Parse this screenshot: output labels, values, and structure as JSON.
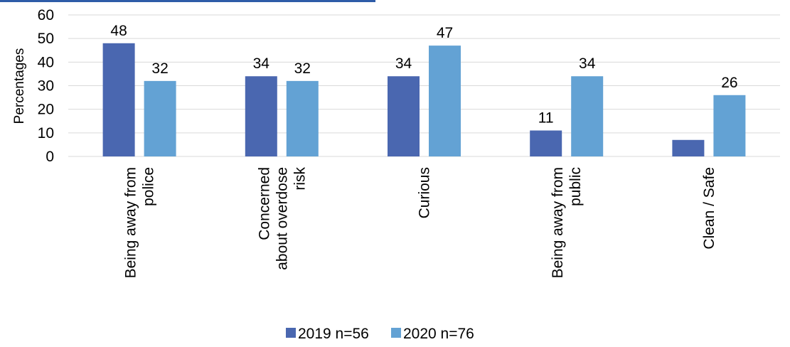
{
  "chart_data": {
    "type": "bar",
    "ylabel": "Percentages",
    "ylim": [
      0,
      60
    ],
    "yticks": [
      0,
      10,
      20,
      30,
      40,
      50,
      60
    ],
    "grid": true,
    "legend_position": "bottom",
    "categories": [
      [
        "Being away from",
        "police"
      ],
      [
        "Concerned",
        "about overdose",
        "risk"
      ],
      [
        "Curious"
      ],
      [
        "Being away from",
        "public"
      ],
      [
        "Clean / Safe"
      ]
    ],
    "series": [
      {
        "name": "2019 n=56",
        "color": "#4a67b0",
        "values": [
          48,
          34,
          34,
          11,
          7
        ],
        "labels": [
          "48",
          "34",
          "34",
          "11",
          ""
        ]
      },
      {
        "name": "2020 n=76",
        "color": "#63a2d4",
        "values": [
          32,
          32,
          47,
          34,
          26
        ],
        "labels": [
          "32",
          "32",
          "47",
          "34",
          "26"
        ]
      }
    ],
    "colors": {
      "gridline": "#d9d9d9",
      "title_strip": "#2e5ca8"
    }
  }
}
